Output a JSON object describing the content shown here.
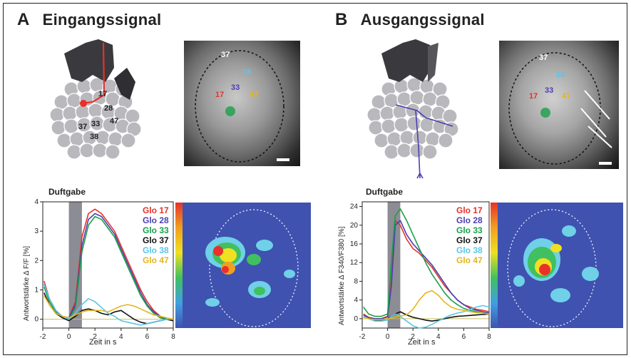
{
  "panels": {
    "A": {
      "letter": "A",
      "title": "Eingangssignal"
    },
    "B": {
      "letter": "B",
      "title": "Ausgangssignal"
    }
  },
  "stimulus_label": "Duftgabe",
  "glomeruli_photo_labels": [
    "37",
    "28",
    "17",
    "33",
    "47"
  ],
  "diagram_labels": [
    "17",
    "28",
    "33",
    "37",
    "47",
    "38"
  ],
  "colors": {
    "glo17": "#e8312a",
    "glo28": "#4b3fb0",
    "glo33": "#19a04a",
    "glo37": "#111111",
    "glo38": "#5bc6e8",
    "glo47": "#e5b51e",
    "stimulus_bar": "#8c8c94",
    "heatmap_bg": "#3f52b0"
  },
  "chart_data": [
    {
      "type": "line",
      "panel": "A",
      "title": "",
      "xlabel": "Zeit in s",
      "ylabel": "Antwortstärke Δ F/F [%]",
      "xlim": [
        -2,
        8
      ],
      "ylim": [
        -0.3,
        4
      ],
      "xticks": [
        "-2",
        "0",
        "2",
        "4",
        "6",
        "8"
      ],
      "yticks": [
        "0",
        "1",
        "2",
        "3",
        "4"
      ],
      "stimulus_interval": [
        0,
        1
      ],
      "x": [
        -1.9,
        -1.5,
        -1,
        -0.5,
        0,
        0.5,
        1,
        1.5,
        2,
        2.5,
        3,
        3.5,
        4,
        4.5,
        5,
        5.5,
        6,
        6.5,
        7,
        7.5,
        8
      ],
      "series": [
        {
          "name": "Glo 17",
          "values": [
            1.3,
            0.7,
            0.3,
            0.1,
            0.05,
            0.6,
            2.8,
            3.6,
            3.75,
            3.6,
            3.3,
            3.0,
            2.5,
            2.0,
            1.5,
            1.0,
            0.6,
            0.3,
            0.1,
            0.0,
            -0.05
          ]
        },
        {
          "name": "Glo 28",
          "values": [
            1.2,
            0.6,
            0.25,
            0.1,
            0.05,
            0.5,
            2.5,
            3.4,
            3.6,
            3.5,
            3.2,
            2.9,
            2.4,
            1.9,
            1.4,
            0.9,
            0.5,
            0.25,
            0.1,
            0.0,
            -0.05
          ]
        },
        {
          "name": "Glo 33",
          "values": [
            1.1,
            0.6,
            0.25,
            0.1,
            0.0,
            0.4,
            2.3,
            3.2,
            3.5,
            3.4,
            3.1,
            2.8,
            2.3,
            1.8,
            1.3,
            0.8,
            0.45,
            0.2,
            0.05,
            0.0,
            -0.05
          ]
        },
        {
          "name": "Glo 37",
          "values": [
            0.9,
            0.5,
            0.2,
            0.05,
            -0.05,
            0.1,
            0.3,
            0.35,
            0.3,
            0.2,
            0.15,
            0.25,
            0.3,
            0.15,
            0.0,
            -0.1,
            -0.15,
            -0.1,
            -0.05,
            0.0,
            -0.05
          ]
        },
        {
          "name": "Glo 38",
          "values": [
            1.2,
            0.7,
            0.3,
            0.1,
            0.0,
            0.2,
            0.5,
            0.7,
            0.6,
            0.4,
            0.2,
            0.1,
            -0.05,
            -0.1,
            -0.15,
            -0.2,
            -0.15,
            -0.1,
            -0.05,
            0.0,
            0.0
          ]
        },
        {
          "name": "Glo 47",
          "values": [
            0.8,
            0.5,
            0.2,
            0.1,
            0.05,
            0.15,
            0.25,
            0.3,
            0.3,
            0.3,
            0.25,
            0.35,
            0.45,
            0.5,
            0.45,
            0.35,
            0.25,
            0.15,
            0.1,
            0.05,
            0.0
          ]
        }
      ]
    },
    {
      "type": "line",
      "panel": "B",
      "title": "",
      "xlabel": "Zeit in s",
      "ylabel": "Antwortstärke Δ F340/F380 [%]",
      "xlim": [
        -2,
        8
      ],
      "ylim": [
        -2,
        25
      ],
      "xticks": [
        "-2",
        "0",
        "2",
        "4",
        "6",
        "8"
      ],
      "yticks": [
        "0",
        "4",
        "8",
        "12",
        "16",
        "20",
        "24"
      ],
      "stimulus_interval": [
        0,
        1
      ],
      "x": [
        -1.9,
        -1.5,
        -1,
        -0.5,
        0,
        0.3,
        0.6,
        1,
        1.5,
        2,
        2.5,
        3,
        3.5,
        4,
        4.5,
        5,
        5.5,
        6,
        6.5,
        7,
        7.5,
        8
      ],
      "series": [
        {
          "name": "Glo 17",
          "values": [
            1.0,
            0.3,
            0.0,
            0.0,
            0.5,
            8,
            21,
            20,
            17,
            15,
            14,
            12.5,
            11,
            9,
            7,
            5.5,
            4,
            3,
            2.5,
            2,
            1.8,
            1.5
          ]
        },
        {
          "name": "Glo 28",
          "values": [
            0.8,
            0.2,
            0.0,
            0.0,
            0.4,
            7,
            20,
            21,
            18,
            16,
            14.5,
            13,
            11.5,
            9.5,
            7.5,
            5.5,
            4,
            3,
            2.2,
            1.8,
            1.5,
            1.2
          ]
        },
        {
          "name": "Glo 33",
          "values": [
            2.5,
            1.0,
            0.5,
            0.5,
            1.0,
            12,
            22,
            23.5,
            21,
            18,
            15,
            12,
            9.5,
            7.5,
            5.5,
            4,
            3,
            2.2,
            1.8,
            1.5,
            1.2,
            1.0
          ]
        },
        {
          "name": "Glo 37",
          "values": [
            0.5,
            0.0,
            -0.3,
            -0.3,
            0.0,
            0.5,
            1.0,
            1.5,
            0.8,
            0.3,
            0.0,
            -0.3,
            -0.5,
            -0.3,
            0.0,
            0.3,
            0.5,
            0.6,
            0.7,
            0.8,
            0.9,
            1.0
          ]
        },
        {
          "name": "Glo 38",
          "values": [
            0.5,
            0.0,
            -0.5,
            -0.5,
            -0.3,
            0.5,
            1.0,
            0.5,
            -0.5,
            -1.5,
            -2.0,
            -1.8,
            -1.2,
            -0.5,
            0.2,
            0.8,
            1.2,
            1.5,
            2.0,
            2.5,
            2.8,
            2.5
          ]
        },
        {
          "name": "Glo 47",
          "values": [
            0.3,
            0.0,
            -0.2,
            -0.2,
            0.0,
            0.2,
            0.4,
            0.6,
            0.8,
            2.0,
            4.0,
            5.5,
            6.0,
            5.0,
            3.5,
            2.5,
            2.0,
            1.8,
            1.5,
            1.3,
            1.2,
            1.0
          ]
        }
      ]
    }
  ]
}
